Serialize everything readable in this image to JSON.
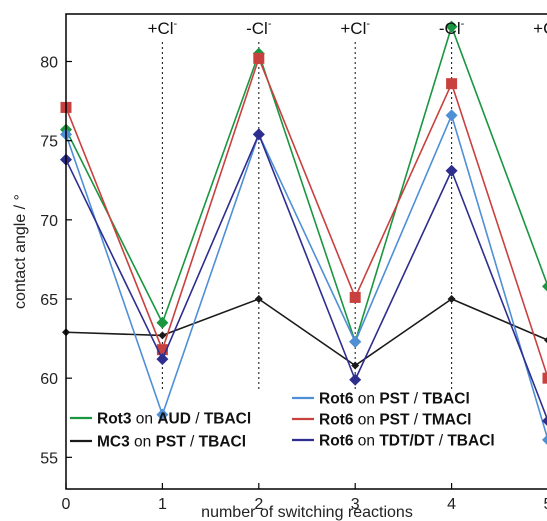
{
  "chart_data": {
    "type": "line",
    "xlabel": "number of switching reactions",
    "ylabel": "contact angle / °",
    "xlim": [
      0,
      5
    ],
    "ylim": [
      53,
      83
    ],
    "x_ticks": [
      "0",
      "1",
      "2",
      "3",
      "4",
      "5"
    ],
    "y_ticks": [
      "55",
      "60",
      "65",
      "70",
      "75",
      "80"
    ],
    "x": [
      0,
      1,
      2,
      3,
      4,
      5
    ],
    "annotations": [
      {
        "x": 1,
        "base": "+Cl",
        "sup": "-"
      },
      {
        "x": 2,
        "base": "-Cl",
        "sup": "-"
      },
      {
        "x": 3,
        "base": "+Cl",
        "sup": "-"
      },
      {
        "x": 4,
        "base": "-Cl",
        "sup": "-"
      },
      {
        "x": 5,
        "base": "+Cl",
        "sup": "-"
      }
    ],
    "series": [
      {
        "id": "rot3-aud",
        "legend": [
          {
            "t": "Rot3",
            "b": true
          },
          {
            "t": " on ",
            "b": false
          },
          {
            "t": "AUD",
            "b": true
          },
          {
            "t": " / ",
            "b": false
          },
          {
            "t": "TBACl",
            "b": true
          }
        ],
        "color": "#1a9641",
        "marker": "diamond",
        "values": [
          75.7,
          63.5,
          80.5,
          62.3,
          82.2,
          65.8
        ]
      },
      {
        "id": "mc3-pst",
        "legend": [
          {
            "t": "MC3",
            "b": true
          },
          {
            "t": " on ",
            "b": false
          },
          {
            "t": "PST",
            "b": true
          },
          {
            "t": "  / ",
            "b": false
          },
          {
            "t": "TBACl",
            "b": true
          }
        ],
        "color": "#1a1a1a",
        "marker": "small-diamond",
        "values": [
          62.9,
          62.7,
          65.0,
          60.8,
          65.0,
          62.4
        ]
      },
      {
        "id": "rot6-pst-tbacl",
        "legend": [
          {
            "t": "Rot6",
            "b": true
          },
          {
            "t": " on ",
            "b": false
          },
          {
            "t": "PST",
            "b": true
          },
          {
            "t": " / ",
            "b": false
          },
          {
            "t": "TBACl",
            "b": true
          }
        ],
        "color": "#4f8fd6",
        "marker": "diamond",
        "values": [
          75.4,
          57.7,
          75.4,
          62.3,
          76.6,
          56.1
        ]
      },
      {
        "id": "rot6-pst-tmacl",
        "legend": [
          {
            "t": "Rot6",
            "b": true
          },
          {
            "t": " on ",
            "b": false
          },
          {
            "t": "PST",
            "b": true
          },
          {
            "t": " / ",
            "b": false
          },
          {
            "t": "TMACl",
            "b": true
          }
        ],
        "color": "#c9413e",
        "marker": "square",
        "values": [
          77.1,
          61.8,
          80.2,
          65.1,
          78.6,
          60.0
        ]
      },
      {
        "id": "rot6-tdt-dt",
        "legend": [
          {
            "t": "Rot6",
            "b": true
          },
          {
            "t": " on ",
            "b": false
          },
          {
            "t": "TDT/DT",
            "b": true
          },
          {
            "t": " / ",
            "b": false
          },
          {
            "t": "TBACl",
            "b": true
          }
        ],
        "color": "#2e2e8f",
        "marker": "diamond",
        "values": [
          73.8,
          61.2,
          75.4,
          59.9,
          73.1,
          57.3
        ]
      }
    ],
    "legend_columns": [
      [
        "rot3-aud",
        "mc3-pst"
      ],
      [
        "rot6-pst-tbacl",
        "rot6-pst-tmacl",
        "rot6-tdt-dt"
      ]
    ]
  }
}
